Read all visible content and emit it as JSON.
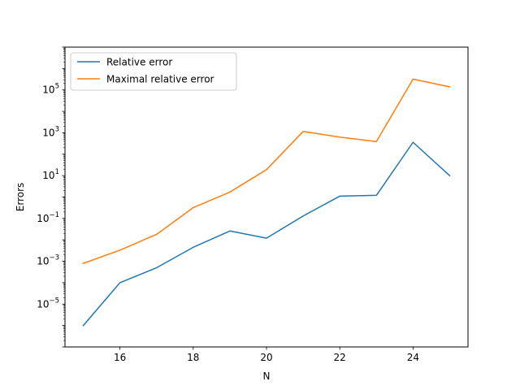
{
  "chart_data": {
    "type": "line",
    "title": "",
    "xlabel": "N",
    "ylabel": "Errors",
    "yscale": "log",
    "xlim": [
      14.5,
      25.5
    ],
    "ylim": [
      1e-07,
      10000000.0
    ],
    "x": [
      15,
      16,
      17,
      18,
      19,
      20,
      21,
      22,
      23,
      24,
      25
    ],
    "series": [
      {
        "name": "Relative error",
        "color": "#1f77b4",
        "values": [
          1e-06,
          0.0001,
          0.0005,
          0.0045,
          0.026,
          0.012,
          0.13,
          1.1,
          1.2,
          360,
          10
        ]
      },
      {
        "name": "Maximal relative error",
        "color": "#ff7f0e",
        "values": [
          0.0008,
          0.0033,
          0.018,
          0.32,
          1.7,
          19,
          1150,
          630,
          390,
          320000,
          140000
        ]
      }
    ],
    "xticks": [
      16,
      18,
      20,
      22,
      24
    ],
    "yticks": [
      {
        "value": 1e-05,
        "base": "10",
        "exp": "−5"
      },
      {
        "value": 0.001,
        "base": "10",
        "exp": "−3"
      },
      {
        "value": 0.1,
        "base": "10",
        "exp": "−1"
      },
      {
        "value": 10.0,
        "base": "10",
        "exp": "1"
      },
      {
        "value": 1000.0,
        "base": "10",
        "exp": "3"
      },
      {
        "value": 100000.0,
        "base": "10",
        "exp": "5"
      }
    ],
    "legend_position": "upper-left",
    "grid": false
  }
}
